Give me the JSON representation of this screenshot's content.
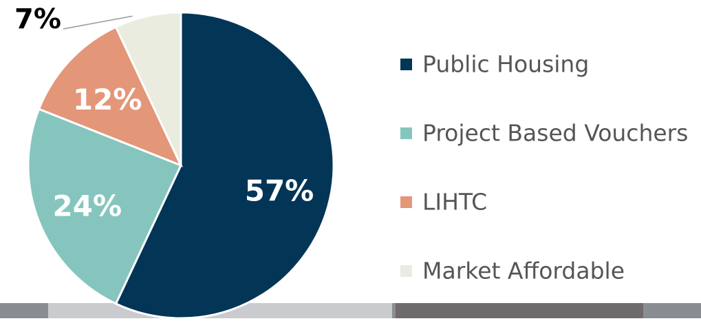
{
  "chart_data": {
    "type": "pie",
    "categories": [
      "Public Housing",
      "Project Based Vouchers",
      "LIHTC",
      "Market Affordable"
    ],
    "values": [
      57,
      24,
      12,
      7
    ],
    "value_labels": [
      "57%",
      "24%",
      "12%",
      "7%"
    ],
    "colors": [
      "#033557",
      "#86c5be",
      "#e49679",
      "#e9ecdf"
    ]
  }
}
